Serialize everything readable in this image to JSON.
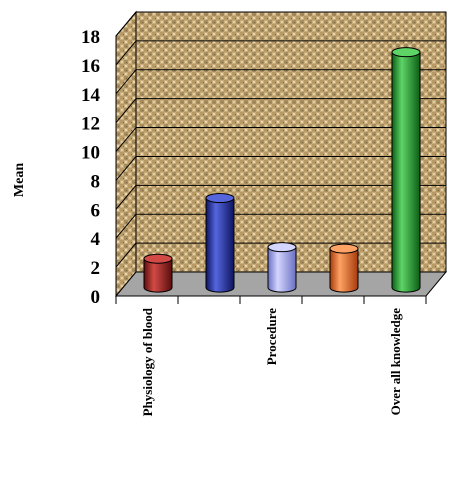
{
  "chart_data": {
    "type": "bar",
    "style": "3d-cylinder",
    "title": "",
    "xlabel": "",
    "ylabel": "Mean",
    "ylim": [
      0,
      18
    ],
    "yticks": [
      0,
      2,
      4,
      6,
      8,
      10,
      12,
      14,
      16,
      18
    ],
    "grid": true,
    "legend": "none",
    "categories": [
      "Physiology of blood",
      "",
      "Procedure",
      "",
      "Over all knowledge"
    ],
    "values": [
      2.0,
      6.2,
      2.8,
      2.7,
      16.3
    ],
    "colors": [
      "#9b1c1c",
      "#1f2a9c",
      "#a2a6ec",
      "#f0661f",
      "#1e9a2a"
    ],
    "colors_light": [
      "#d24a45",
      "#5566dd",
      "#d4d6ff",
      "#ffa266",
      "#5ed466"
    ],
    "colors_dark": [
      "#5a0d0d",
      "#0e1460",
      "#6a6fc2",
      "#a63b0b",
      "#0c5e15"
    ]
  }
}
